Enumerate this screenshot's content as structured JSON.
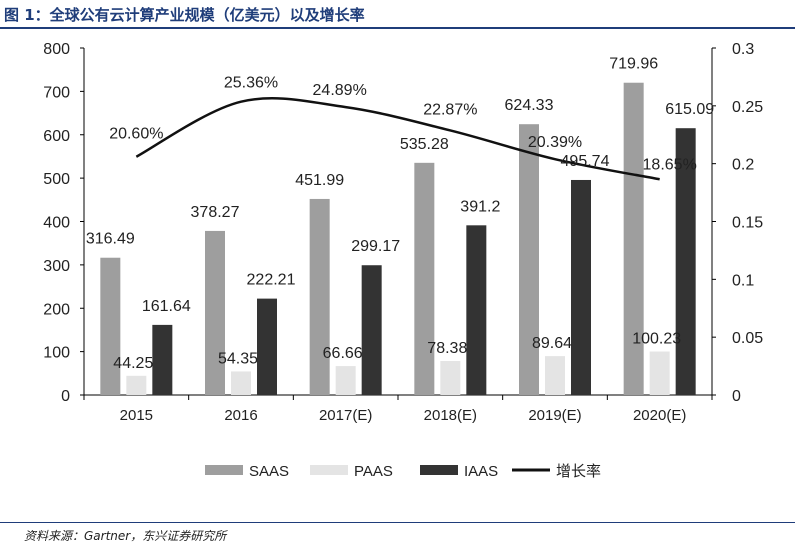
{
  "figure_title": "图 1：全球公有云计算产业规模（亿美元）以及增长率",
  "source": "资料来源：Gartner，东兴证券研究所",
  "chart_data": {
    "type": "bar",
    "categories": [
      "2015",
      "2016",
      "2017(E)",
      "2018(E)",
      "2019(E)",
      "2020(E)"
    ],
    "series": [
      {
        "name": "SAAS",
        "kind": "bar",
        "color": "#9e9e9e",
        "values": [
          316.49,
          378.27,
          451.99,
          535.28,
          624.33,
          719.96
        ],
        "labels": [
          "316.49",
          "378.27",
          "451.99",
          "535.28",
          "624.33",
          "719.96"
        ]
      },
      {
        "name": "PAAS",
        "kind": "bar",
        "color": "#e4e4e4",
        "values": [
          44.25,
          54.35,
          66.66,
          78.38,
          89.64,
          100.23
        ],
        "labels": [
          "44.25",
          "54.35",
          "66.66",
          "78.38",
          "89.64",
          "100.23"
        ]
      },
      {
        "name": "IAAS",
        "kind": "bar",
        "color": "#333333",
        "values": [
          161.64,
          222.21,
          299.17,
          391.2,
          495.74,
          615.09
        ],
        "labels": [
          "161.64",
          "222.21",
          "299.17",
          "391.2",
          "495.74",
          "615.09"
        ]
      },
      {
        "name": "增长率",
        "kind": "line",
        "axis": "right",
        "color": "#111111",
        "values": [
          0.206,
          0.2536,
          0.2489,
          0.2287,
          0.2039,
          0.1865
        ],
        "labels": [
          "20.60%",
          "25.36%",
          "24.89%",
          "22.87%",
          "20.39%",
          "18.65%"
        ]
      }
    ],
    "y_left": {
      "min": 0,
      "max": 800,
      "ticks": [
        "0",
        "100",
        "200",
        "300",
        "400",
        "500",
        "600",
        "700",
        "800"
      ]
    },
    "y_right": {
      "min": 0,
      "max": 0.3,
      "ticks": [
        "0",
        "0.05",
        "0.1",
        "0.15",
        "0.2",
        "0.25",
        "0.3"
      ]
    },
    "grid": false,
    "legend_position": "bottom"
  }
}
